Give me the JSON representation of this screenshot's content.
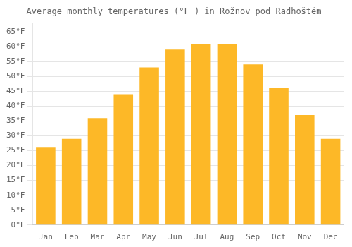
{
  "chart_data": {
    "type": "bar",
    "title": "Average monthly temperatures (°F ) in Rožnov pod Radhoštěm",
    "categories": [
      "Jan",
      "Feb",
      "Mar",
      "Apr",
      "May",
      "Jun",
      "Jul",
      "Aug",
      "Sep",
      "Oct",
      "Nov",
      "Dec"
    ],
    "values": [
      26.0,
      29.0,
      36.0,
      44.0,
      53.0,
      59.0,
      61.0,
      61.0,
      54.0,
      46.0,
      37.0,
      29.0
    ],
    "color": "#FDB827",
    "ylim": [
      0,
      68
    ],
    "yticks": [
      {
        "value": 0,
        "label": "0°F"
      },
      {
        "value": 5,
        "label": "5°F"
      },
      {
        "value": 10,
        "label": "10°F"
      },
      {
        "value": 15,
        "label": "15°F"
      },
      {
        "value": 20,
        "label": "20°F"
      },
      {
        "value": 25,
        "label": "25°F"
      },
      {
        "value": 30,
        "label": "30°F"
      },
      {
        "value": 35,
        "label": "35°F"
      },
      {
        "value": 40,
        "label": "40°F"
      },
      {
        "value": 45,
        "label": "45°F"
      },
      {
        "value": 50,
        "label": "50°F"
      },
      {
        "value": 55,
        "label": "55°F"
      },
      {
        "value": 60,
        "label": "60°F"
      },
      {
        "value": 65,
        "label": "65°F"
      }
    ],
    "grid": true
  }
}
